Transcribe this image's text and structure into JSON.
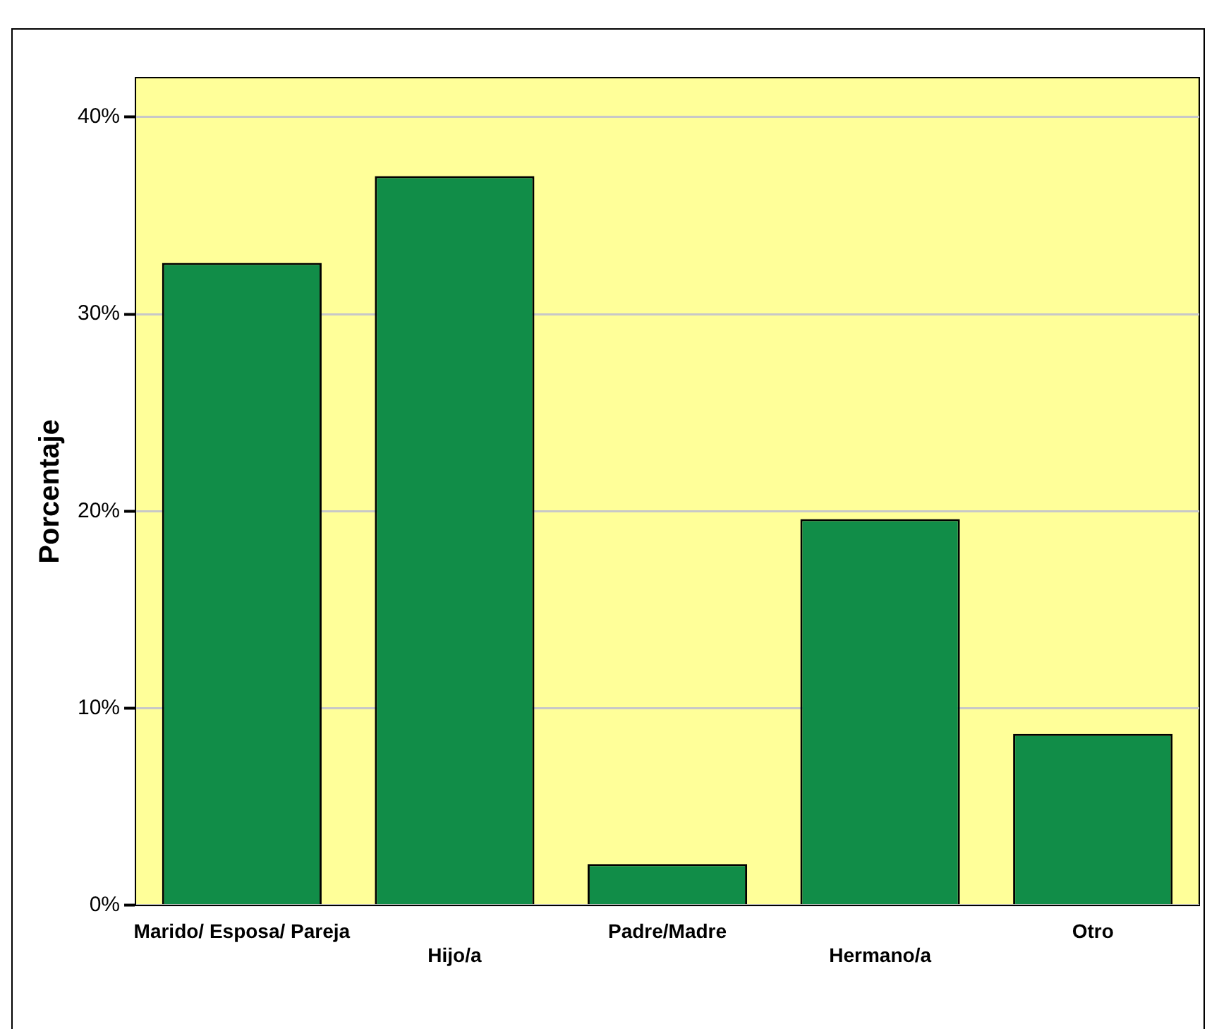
{
  "chart_data": {
    "type": "bar",
    "ylabel": "Porcentaje",
    "categories": [
      "Marido/ Esposa/ Pareja",
      "Hijo/a",
      "Padre/Madre",
      "Hermano/a",
      "Otro"
    ],
    "values": [
      32.6,
      37.0,
      2.1,
      19.6,
      8.7
    ],
    "color": "#118d48",
    "ylim": [
      0,
      42
    ],
    "yticks": [
      {
        "value": 0,
        "label": "0%"
      },
      {
        "value": 10,
        "label": "10%"
      },
      {
        "value": 20,
        "label": "20%"
      },
      {
        "value": 30,
        "label": "30%"
      },
      {
        "value": 40,
        "label": "40%"
      }
    ],
    "grid": "y"
  }
}
